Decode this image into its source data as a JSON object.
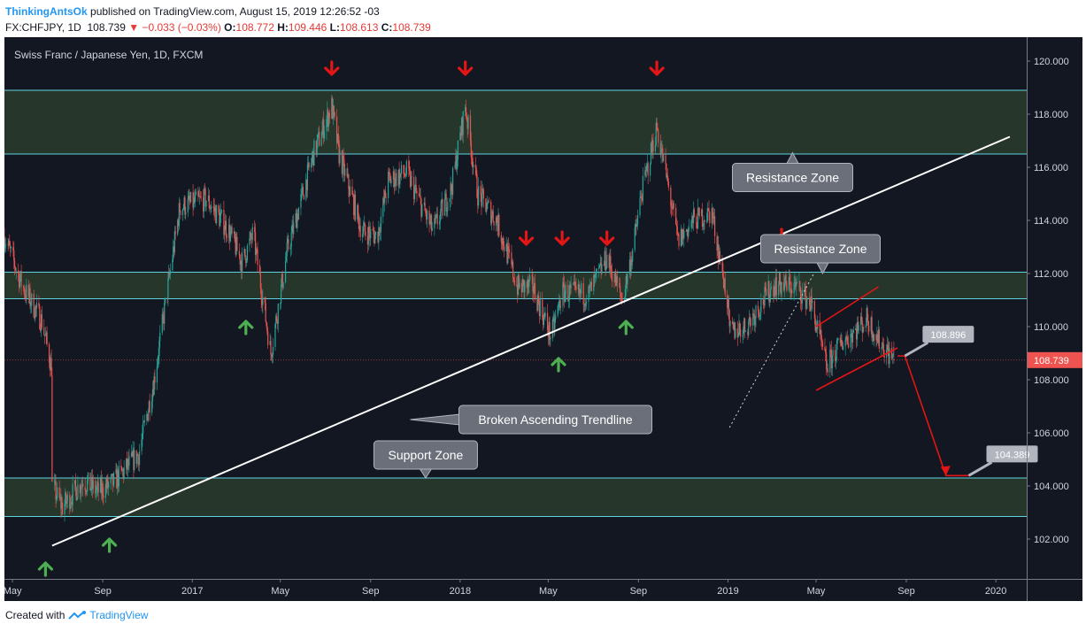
{
  "header": {
    "author": "ThinkingAntsOk",
    "published": "published on TradingView.com, August 15, 2019 12:26:52 -03"
  },
  "ohlc": {
    "symbol": "FX:CHFJPY, 1D",
    "last": "108.739",
    "change": "▼ −0.033 (−0.03%)",
    "o_label": "O:",
    "o": "108.772",
    "h_label": "H:",
    "h": "109.446",
    "l_label": "L:",
    "l": "108.613",
    "c_label": "C:",
    "c": "108.739"
  },
  "footer": {
    "created_with": "Created with",
    "brand": "TradingView"
  },
  "chart_data": {
    "type": "candlestick",
    "title": "Swiss Franc / Japanese Yen, 1D, FXCM",
    "ylim": [
      100.5,
      120.9
    ],
    "x_range": [
      "2016-04-20",
      "2020-02-12"
    ],
    "y_ticks": [
      "102.000",
      "104.000",
      "106.000",
      "108.000",
      "110.000",
      "112.000",
      "114.000",
      "116.000",
      "118.000",
      "120.000"
    ],
    "x_ticks": [
      {
        "label": "May",
        "date": "2016-05-01"
      },
      {
        "label": "Sep",
        "date": "2016-09-01"
      },
      {
        "label": "2017",
        "date": "2017-01-01"
      },
      {
        "label": "May",
        "date": "2017-05-01"
      },
      {
        "label": "Sep",
        "date": "2017-09-01"
      },
      {
        "label": "2018",
        "date": "2018-01-01"
      },
      {
        "label": "May",
        "date": "2018-05-01"
      },
      {
        "label": "Sep",
        "date": "2018-09-01"
      },
      {
        "label": "2019",
        "date": "2019-01-01"
      },
      {
        "label": "May",
        "date": "2019-05-01"
      },
      {
        "label": "Sep",
        "date": "2019-09-01"
      },
      {
        "label": "2020",
        "date": "2020-01-01"
      }
    ],
    "last_price": {
      "value": 108.739,
      "label": "108.739",
      "color": "#ef5350"
    },
    "price_path": [
      [
        "2016-04-20",
        113.4
      ],
      [
        "2016-05-15",
        111.5
      ],
      [
        "2016-06-10",
        110.2
      ],
      [
        "2016-06-23",
        108.5
      ],
      [
        "2016-06-24",
        104.0
      ],
      [
        "2016-07-08",
        103.2
      ],
      [
        "2016-08-05",
        104.2
      ],
      [
        "2016-08-25",
        103.8
      ],
      [
        "2016-09-15",
        104.1
      ],
      [
        "2016-10-20",
        105.2
      ],
      [
        "2016-11-10",
        108.0
      ],
      [
        "2016-12-15",
        114.5
      ],
      [
        "2017-01-20",
        114.8
      ],
      [
        "2017-02-20",
        113.6
      ],
      [
        "2017-03-10",
        112.4
      ],
      [
        "2017-03-25",
        113.5
      ],
      [
        "2017-04-18",
        109.0
      ],
      [
        "2017-05-10",
        112.8
      ],
      [
        "2017-06-15",
        116.5
      ],
      [
        "2017-07-10",
        118.3
      ],
      [
        "2017-07-20",
        116.5
      ],
      [
        "2017-08-20",
        113.6
      ],
      [
        "2017-09-10",
        113.4
      ],
      [
        "2017-09-25",
        115.5
      ],
      [
        "2017-10-20",
        115.8
      ],
      [
        "2017-11-25",
        113.6
      ],
      [
        "2017-12-20",
        115.2
      ],
      [
        "2018-01-08",
        118.3
      ],
      [
        "2018-01-25",
        115.0
      ],
      [
        "2018-02-20",
        114.0
      ],
      [
        "2018-03-20",
        111.5
      ],
      [
        "2018-04-10",
        111.5
      ],
      [
        "2018-05-05",
        109.6
      ],
      [
        "2018-05-20",
        111.3
      ],
      [
        "2018-06-25",
        111.2
      ],
      [
        "2018-07-20",
        112.6
      ],
      [
        "2018-08-10",
        111.0
      ],
      [
        "2018-08-25",
        113.0
      ],
      [
        "2018-09-05",
        115.0
      ],
      [
        "2018-09-26",
        117.5
      ],
      [
        "2018-10-10",
        115.5
      ],
      [
        "2018-10-25",
        113.2
      ],
      [
        "2018-11-15",
        114.0
      ],
      [
        "2018-12-10",
        114.3
      ],
      [
        "2018-12-31",
        111.0
      ],
      [
        "2019-01-03",
        109.8
      ],
      [
        "2019-01-25",
        110.0
      ],
      [
        "2019-03-05",
        111.6
      ],
      [
        "2019-04-05",
        111.5
      ],
      [
        "2019-04-25",
        110.8
      ],
      [
        "2019-05-15",
        108.5
      ],
      [
        "2019-06-05",
        109.4
      ],
      [
        "2019-07-10",
        110.3
      ],
      [
        "2019-07-25",
        109.5
      ],
      [
        "2019-08-15",
        108.739
      ]
    ],
    "zones": [
      {
        "name": "resistance-zone-top",
        "from": 116.5,
        "to": 118.9
      },
      {
        "name": "resistance-zone-middle",
        "from": 111.05,
        "to": 112.05
      },
      {
        "name": "support-zone",
        "from": 102.85,
        "to": 104.3
      }
    ],
    "trendline": {
      "from": [
        "2016-06-24",
        101.75
      ],
      "to": [
        "2020-01-20",
        117.15
      ]
    },
    "dotted_line": {
      "from": [
        "2019-01-03",
        106.2
      ],
      "to": [
        "2019-04-28",
        112.0
      ]
    },
    "channel": {
      "upper": {
        "from": [
          "2019-05-01",
          110.0
        ],
        "to": [
          "2019-07-25",
          111.5
        ]
      },
      "lower": {
        "from": [
          "2019-05-01",
          107.6
        ],
        "to": [
          "2019-08-20",
          109.2
        ]
      }
    },
    "projection": [
      [
        "2019-08-20",
        108.896
      ],
      [
        "2019-08-30",
        108.896
      ],
      [
        "2019-10-25",
        104.389
      ],
      [
        "2019-11-25",
        104.389
      ]
    ],
    "price_tags": [
      {
        "label": "108.896",
        "anchor": [
          "2019-08-30",
          108.896
        ]
      },
      {
        "label": "104.389",
        "anchor": [
          "2019-11-25",
          104.389
        ]
      }
    ],
    "callouts": [
      {
        "label": "Resistance Zone",
        "anchor": [
          "2019-03-30",
          116.55
        ]
      },
      {
        "label": "Resistance Zone",
        "anchor": [
          "2019-05-10",
          112.0
        ]
      },
      {
        "label": "Broken Ascending Trendline",
        "anchor": [
          "2017-10-25",
          106.5
        ]
      },
      {
        "label": "Support Zone",
        "anchor": [
          "2017-11-15",
          104.3
        ]
      }
    ],
    "down_arrows": [
      [
        "2017-07-10",
        119.5
      ],
      [
        "2018-01-08",
        119.5
      ],
      [
        "2018-09-26",
        119.5
      ],
      [
        "2018-04-01",
        113.1
      ],
      [
        "2018-05-20",
        113.1
      ],
      [
        "2018-07-20",
        113.1
      ],
      [
        "2019-03-15",
        113.2
      ]
    ],
    "up_arrows": [
      [
        "2016-06-15",
        101.1
      ],
      [
        "2016-09-10",
        102.0
      ],
      [
        "2017-03-15",
        110.2
      ],
      [
        "2018-05-15",
        108.8
      ],
      [
        "2018-08-15",
        110.2
      ]
    ],
    "colors": {
      "background": "#131722",
      "up_candle": "#26a69a",
      "down_candle": "#ef5350",
      "zone_fill": "#27362b",
      "zone_border": "#5fd3e0",
      "annotation_red": "#e31515",
      "arrow_green": "#4caf50",
      "callout_fill": "#6b6f7a"
    }
  }
}
